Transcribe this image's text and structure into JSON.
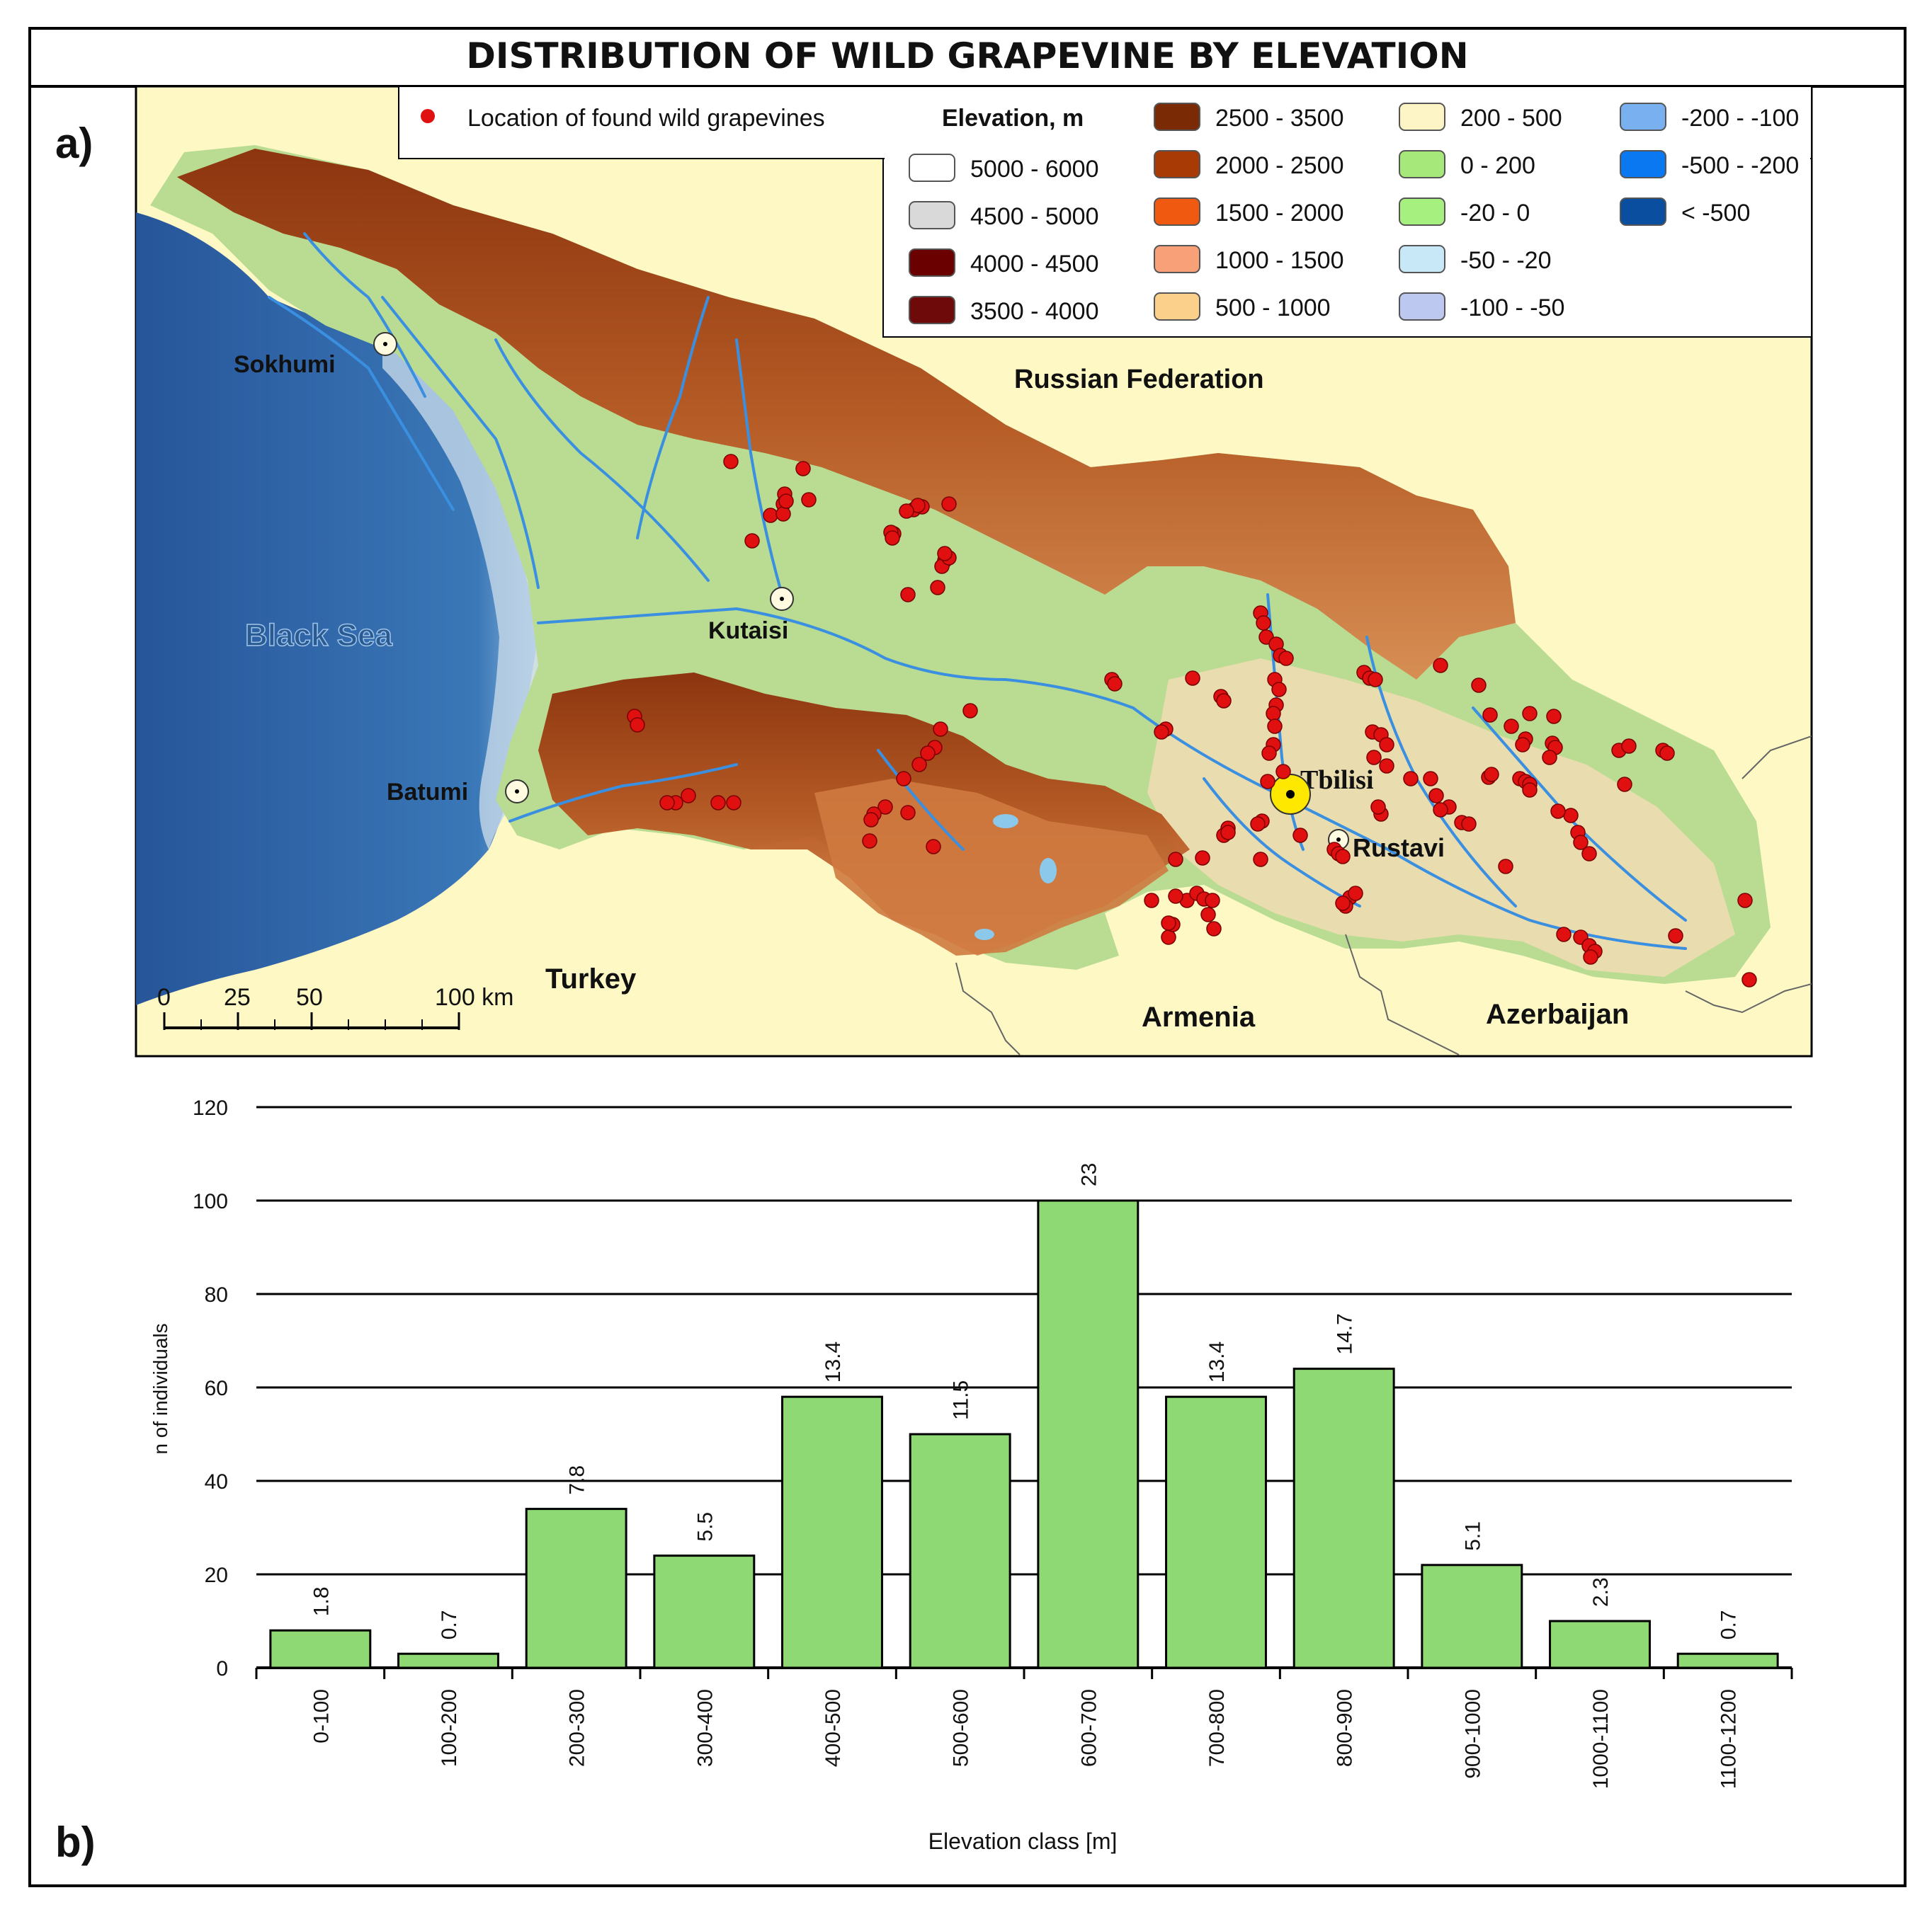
{
  "title": "DISTRIBUTION OF WILD GRAPEVINE BY ELEVATION",
  "panel_a_label": "a)",
  "panel_b_label": "b)",
  "map": {
    "points_legend": "Location of found wild grapevines",
    "elevation_legend_title": "Elevation, m",
    "elevation_classes": [
      {
        "label": "5000 - 6000",
        "color": "#ffffff"
      },
      {
        "label": "4500 - 5000",
        "color": "#d9d9d9"
      },
      {
        "label": "4000 - 4500",
        "color": "#6b0000"
      },
      {
        "label": "3500 - 4000",
        "color": "#6e0a0a"
      },
      {
        "label": "2500 - 3500",
        "color": "#7a2a05"
      },
      {
        "label": "2000 - 2500",
        "color": "#a83a06"
      },
      {
        "label": "1500 - 2000",
        "color": "#f05a10"
      },
      {
        "label": "1000 - 1500",
        "color": "#f8a078"
      },
      {
        "label": "500 - 1000",
        "color": "#fbd08a"
      },
      {
        "label": "200 - 500",
        "color": "#fdf5c6"
      },
      {
        "label": "0 - 200",
        "color": "#a6e87a"
      },
      {
        "label": "-20 - 0",
        "color": "#a6f080"
      },
      {
        "label": "-50 - -20",
        "color": "#c8e8f8"
      },
      {
        "label": "-100 - -50",
        "color": "#bcc8f0"
      },
      {
        "label": "-200 - -100",
        "color": "#78b0f0"
      },
      {
        "label": "-500 - -200",
        "color": "#0a78f0"
      },
      {
        "label": "< -500",
        "color": "#0a4ea0"
      }
    ],
    "colors": {
      "land_background": "#fdf8c4",
      "sea": "#2f67a8",
      "lowland": "#b6d98e",
      "highland": "#a84a1c",
      "river": "#3a8fe0",
      "point": "#e01010"
    },
    "places": {
      "black_sea": "Black Sea",
      "russia": "Russian Federation",
      "turkey": "Turkey",
      "armenia": "Armenia",
      "azerbaijan": "Azerbaijan",
      "sokhumi": "Sokhumi",
      "kutaisi": "Kutaisi",
      "batumi": "Batumi",
      "tbilisi": "Tbilisi",
      "rustavi": "Rustavi"
    },
    "scale_bar": {
      "ticks": [
        "0",
        "25",
        "50",
        "100 km"
      ]
    }
  },
  "chart_data": {
    "type": "bar",
    "categories": [
      "0-100",
      "100-200",
      "200-300",
      "300-400",
      "400-500",
      "500-600",
      "600-700",
      "700-800",
      "800-900",
      "900-1000",
      "1000-1100",
      "1100-1200"
    ],
    "values": [
      8,
      3,
      34,
      24,
      58,
      50,
      100,
      58,
      64,
      22,
      10,
      3
    ],
    "data_labels": [
      "1.8",
      "0.7",
      "7.8",
      "5.5",
      "13.4",
      "11.5",
      "23",
      "13.4",
      "14.7",
      "5.1",
      "2.3",
      "0.7"
    ],
    "xlabel": "Elevation class [m]",
    "ylabel": "n of individuals",
    "ylim": [
      0,
      120
    ],
    "yticks": [
      "0",
      "20",
      "40",
      "60",
      "80",
      "100",
      "120"
    ],
    "grid": true,
    "bar_color": "#8fd974"
  }
}
